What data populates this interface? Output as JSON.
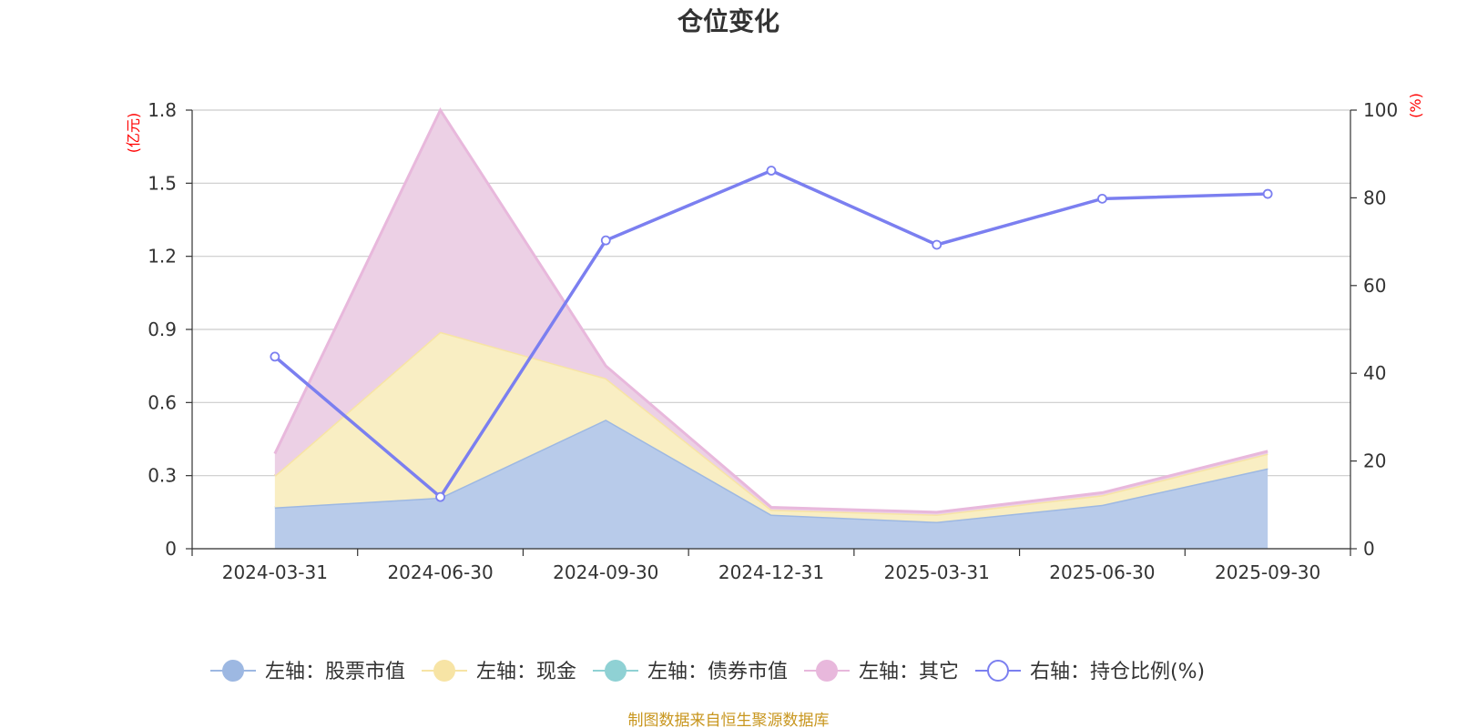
{
  "chart_data": {
    "type": "area",
    "title": "仓位变化",
    "categories": [
      "2024-03-31",
      "2024-06-30",
      "2024-09-30",
      "2024-12-31",
      "2025-03-31",
      "2025-06-30",
      "2025-09-30"
    ],
    "left_axis": {
      "unit": "(亿元)",
      "ylim": [
        0,
        1.8
      ],
      "ticks": [
        "0",
        "0.3",
        "0.6",
        "0.9",
        "1.2",
        "1.5",
        "1.8"
      ]
    },
    "right_axis": {
      "unit": "(%)",
      "ylim": [
        0,
        100
      ],
      "ticks": [
        "0",
        "20",
        "40",
        "60",
        "80",
        "100"
      ]
    },
    "series": [
      {
        "name": "左轴：股票市值",
        "axis": "left",
        "kind": "stacked-area",
        "color": "#9db8e2",
        "fill": "#b8cbea",
        "values": [
          0.17,
          0.21,
          0.53,
          0.14,
          0.11,
          0.18,
          0.33
        ]
      },
      {
        "name": "左轴：现金",
        "axis": "left",
        "kind": "stacked-area",
        "color": "#f7e4a5",
        "fill": "#f9eec3",
        "values": [
          0.13,
          0.68,
          0.17,
          0.02,
          0.03,
          0.04,
          0.06
        ]
      },
      {
        "name": "左轴：债券市值",
        "axis": "left",
        "kind": "stacked-area",
        "color": "#8fd1d4",
        "fill": "#b7e3e5",
        "values": [
          0,
          0,
          0,
          0,
          0,
          0,
          0
        ]
      },
      {
        "name": "左轴：其它",
        "axis": "left",
        "kind": "stacked-area",
        "color": "#e8b8dc",
        "fill": "#ecd0e5",
        "values": [
          0.09,
          0.91,
          0.05,
          0.01,
          0.01,
          0.01,
          0.01
        ]
      },
      {
        "name": "右轴：持仓比例(%)",
        "axis": "right",
        "kind": "line",
        "color": "#7b7ff0",
        "values": [
          43.8,
          11.8,
          70.3,
          86.2,
          69.3,
          79.8,
          80.9
        ]
      }
    ],
    "source_note": "制图数据来自恒生聚源数据库"
  }
}
